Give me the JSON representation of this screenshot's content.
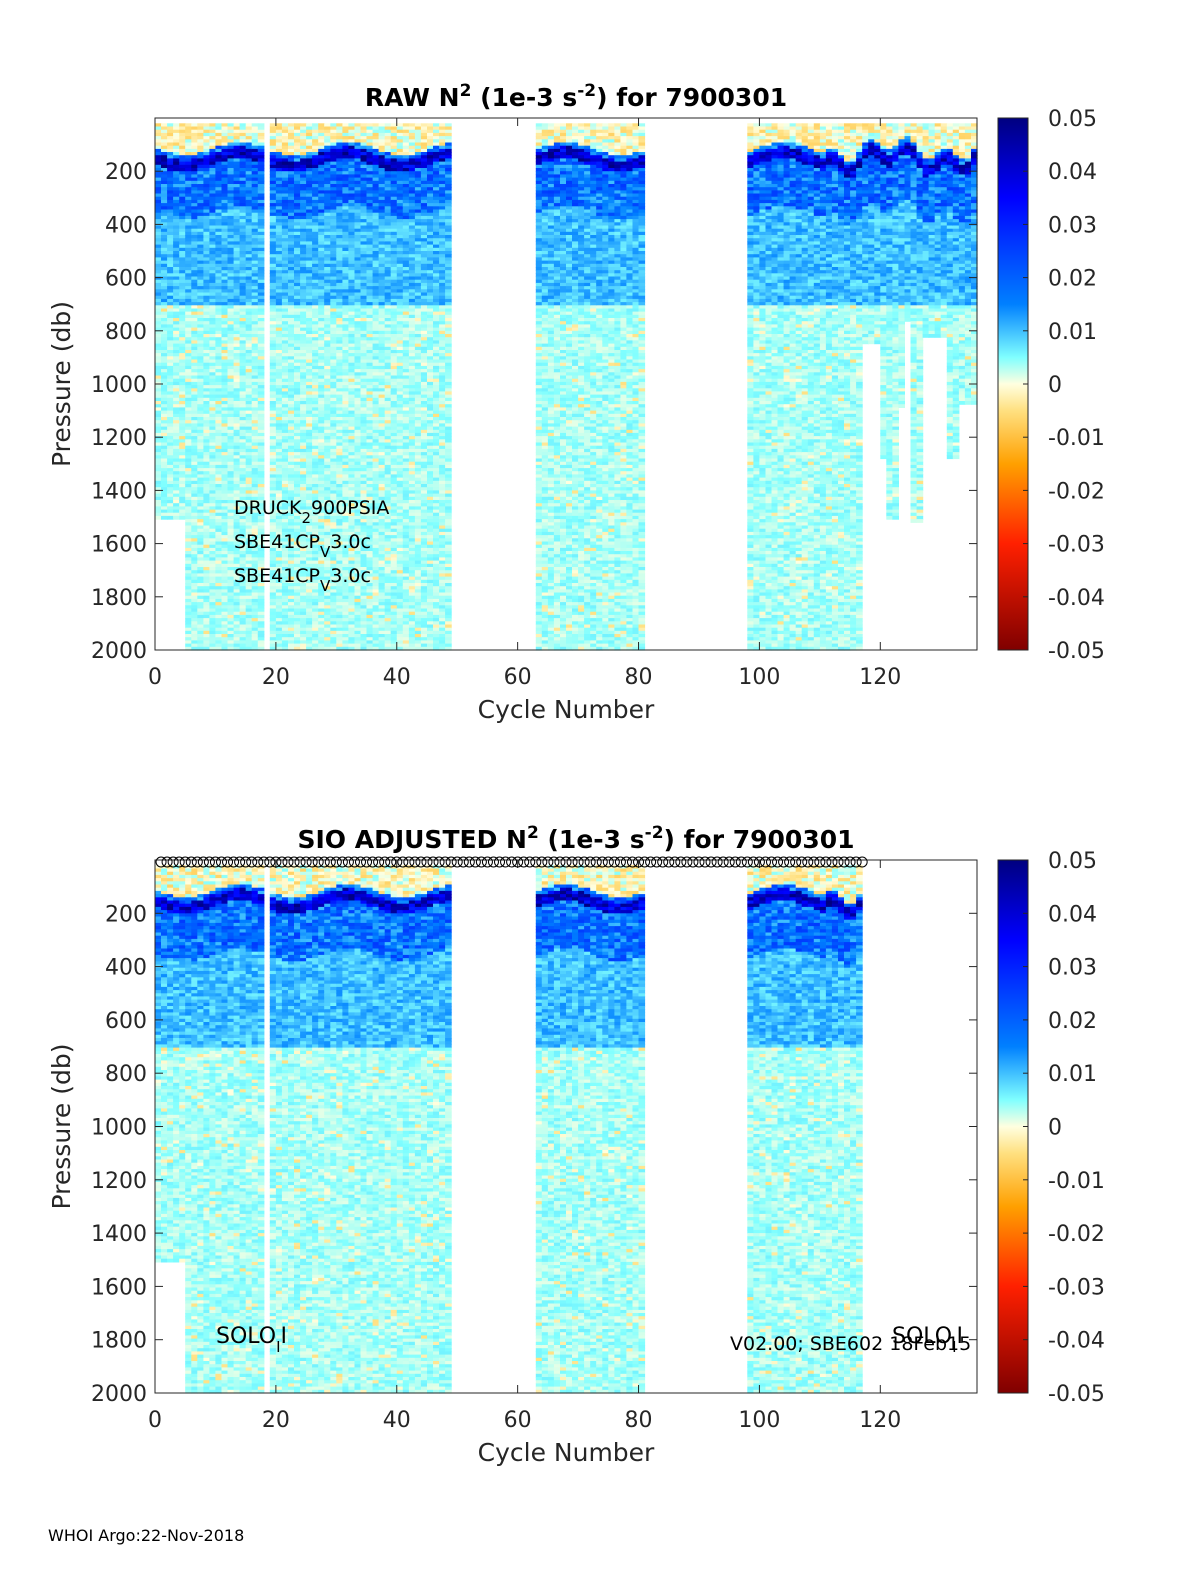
{
  "footer": "WHOI Argo:22-Nov-2018",
  "chart_data": [
    {
      "type": "heatmap",
      "title": {
        "pre": "RAW N",
        "sup": "2",
        "mid": " (1e-3 s",
        "sup2": "-2",
        "post": ") for 7900301"
      },
      "xlabel": "Cycle Number",
      "ylabel": "Pressure (db)",
      "xlim": [
        0,
        136
      ],
      "ylim": [
        2000,
        0
      ],
      "xticks": [
        "0",
        "20",
        "40",
        "60",
        "80",
        "100",
        "120"
      ],
      "yticks": [
        "200",
        "400",
        "600",
        "800",
        "1000",
        "1200",
        "1400",
        "1600",
        "1800",
        "2000"
      ],
      "colorbar": {
        "min": -0.05,
        "max": 0.05,
        "ticks": [
          "0.05",
          "0.04",
          "0.03",
          "0.02",
          "0.01",
          "0",
          "-0.01",
          "-0.02",
          "-0.03",
          "-0.04",
          "-0.05"
        ]
      },
      "cycle_ranges_with_data": [
        [
          0,
          49
        ],
        [
          63,
          81
        ],
        [
          98,
          136
        ]
      ],
      "max_pressure_by_cycle_segment": [
        {
          "x": [
            0,
            1
          ],
          "p": 1500
        },
        {
          "x": [
            1,
            5
          ],
          "p": 1500
        },
        {
          "x": [
            5,
            18
          ],
          "p": 2000
        },
        {
          "x": [
            19,
            49
          ],
          "p": 2000
        },
        {
          "x": [
            63,
            81
          ],
          "p": 2000
        },
        {
          "x": [
            98,
            117
          ],
          "p": 2000
        },
        {
          "x": [
            117,
            120
          ],
          "p": 840
        },
        {
          "x": [
            120,
            121
          ],
          "p": 1280
        },
        {
          "x": [
            121,
            123
          ],
          "p": 1500
        },
        {
          "x": [
            123,
            124
          ],
          "p": 1080
        },
        {
          "x": [
            124,
            125
          ],
          "p": 760
        },
        {
          "x": [
            125,
            127
          ],
          "p": 1510
        },
        {
          "x": [
            127,
            129
          ],
          "p": 820
        },
        {
          "x": [
            129,
            131
          ],
          "p": 820
        },
        {
          "x": [
            131,
            133
          ],
          "p": 1270
        },
        {
          "x": [
            133,
            136
          ],
          "p": 1070
        }
      ],
      "pycnocline_pressure_db": 150,
      "annotations": [
        {
          "main": "DRUCK",
          "sub": "2",
          "rest": "900PSIA"
        },
        {
          "main": "SBE41CP",
          "sub": "V",
          "rest": "3.0c"
        },
        {
          "main": "SBE41CP",
          "sub": "V",
          "rest": "3.0c"
        }
      ]
    },
    {
      "type": "heatmap",
      "title": {
        "pre": "SIO  ADJUSTED N",
        "sup": "2",
        "mid": " (1e-3 s",
        "sup2": "-2",
        "post": ") for 7900301"
      },
      "xlabel": "Cycle Number",
      "ylabel": "Pressure (db)",
      "xlim": [
        0,
        136
      ],
      "ylim": [
        2000,
        0
      ],
      "xticks": [
        "0",
        "20",
        "40",
        "60",
        "80",
        "100",
        "120"
      ],
      "yticks": [
        "200",
        "400",
        "600",
        "800",
        "1000",
        "1200",
        "1400",
        "1600",
        "1800",
        "2000"
      ],
      "colorbar": {
        "min": -0.05,
        "max": 0.05,
        "ticks": [
          "0.05",
          "0.04",
          "0.03",
          "0.02",
          "0.01",
          "0",
          "-0.01",
          "-0.02",
          "-0.03",
          "-0.04",
          "-0.05"
        ]
      },
      "cycle_ranges_with_data": [
        [
          0,
          49
        ],
        [
          63,
          81
        ],
        [
          98,
          117
        ]
      ],
      "marker_cycles_range": [
        1,
        117
      ],
      "pycnocline_pressure_db": 150,
      "annotations": [
        {
          "main": "SOLO",
          "sub": "I",
          "rest": "I"
        },
        {
          "main": "V02.00; SBE602 18Feb15",
          "sub": "",
          "rest": ""
        },
        {
          "main": "SOLO",
          "sub": "I",
          "rest": "I"
        }
      ]
    }
  ]
}
